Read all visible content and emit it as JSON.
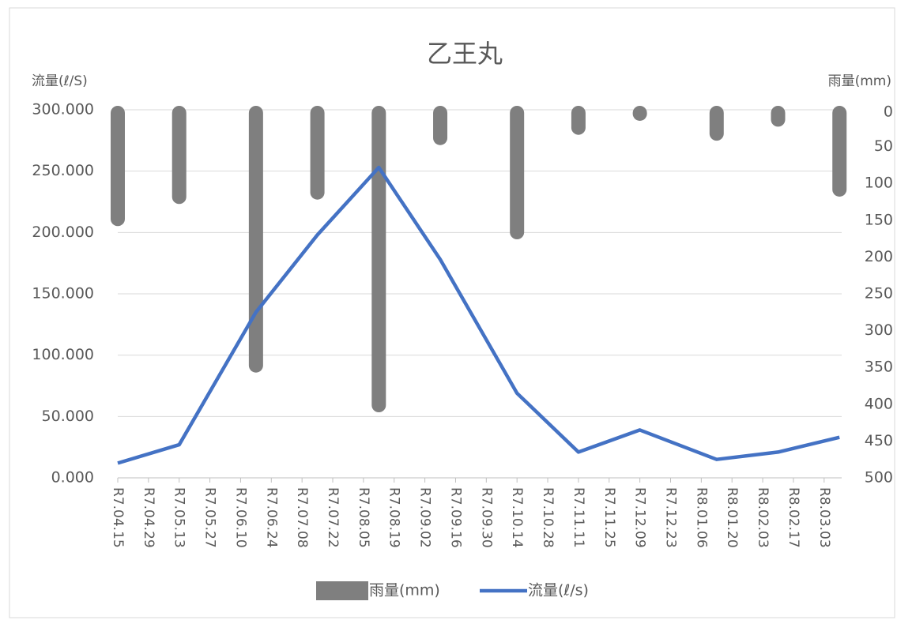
{
  "chart_data": {
    "type": "bar-line",
    "title": "乙王丸",
    "y_label": "流量(ℓ/S)",
    "y2_label": "雨量(mm)",
    "x": [
      "R7.04.15",
      "R7.05.13",
      "R7.06.17",
      "R7.07.15",
      "R7.08.12",
      "R7.09.09",
      "R7.10.14",
      "R7.11.11",
      "R7.12.09",
      "R8.01.13",
      "R8.02.10",
      "R8.03.10"
    ],
    "xlim": [
      "R7.04.15",
      "R8.03.11"
    ],
    "xticks": [
      "R7.04.15",
      "R7.04.29",
      "R7.05.13",
      "R7.05.27",
      "R7.06.10",
      "R7.06.24",
      "R7.07.08",
      "R7.07.22",
      "R7.08.05",
      "R7.08.19",
      "R7.09.02",
      "R7.09.16",
      "R7.09.30",
      "R7.10.14",
      "R7.10.28",
      "R7.11.11",
      "R7.11.25",
      "R7.12.09",
      "R7.12.23",
      "R8.01.06",
      "R8.01.20",
      "R8.02.03",
      "R8.02.17",
      "R8.03.03"
    ],
    "ylim": [
      0,
      300
    ],
    "yticks": [
      {
        "value": 0,
        "label": "0.000"
      },
      {
        "value": 50,
        "label": "50.000"
      },
      {
        "value": 100,
        "label": "100.000"
      },
      {
        "value": 150,
        "label": "150.000"
      },
      {
        "value": 200,
        "label": "200.000"
      },
      {
        "value": 250,
        "label": "250.000"
      },
      {
        "value": 300,
        "label": "300.000"
      }
    ],
    "y2lim": [
      0,
      500
    ],
    "y2_reversed": true,
    "y2ticks": [
      0,
      50,
      100,
      150,
      200,
      250,
      300,
      350,
      400,
      450,
      500
    ],
    "grid": true,
    "legend": "bottom",
    "series": [
      {
        "name": "雨量(mm)",
        "type": "bar",
        "axis": "y2",
        "color": "#7f7f7f",
        "values": [
          158,
          128,
          357,
          122,
          411,
          48,
          176,
          34,
          15,
          42,
          23,
          118
        ]
      },
      {
        "name": "流量(ℓ/s)",
        "type": "line",
        "color": "#4472c4",
        "values": [
          12,
          27,
          135,
          198,
          253,
          178,
          69,
          21,
          39,
          15,
          21,
          33
        ]
      }
    ]
  }
}
